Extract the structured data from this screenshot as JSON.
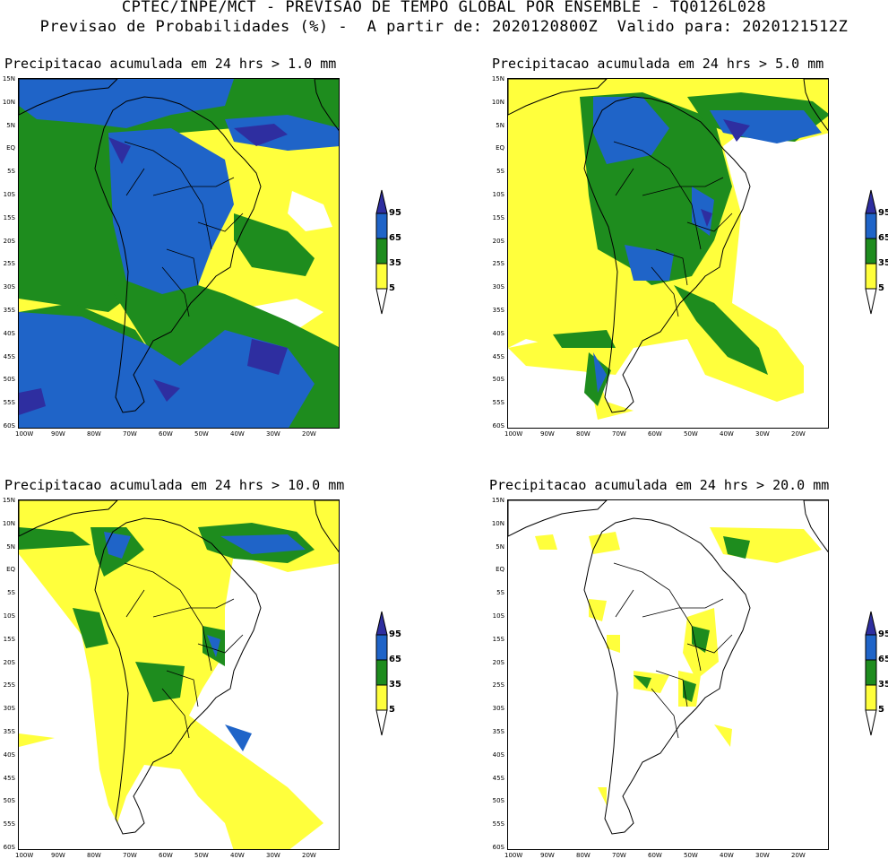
{
  "header": {
    "line1": "CPTEC/INPE/MCT - PREVISAO DE TEMPO GLOBAL POR ENSEMBLE - TQ0126L028",
    "line2": "Previsao de Probabilidades (%) -  A partir de: 2020120800Z  Valido para: 2020121512Z"
  },
  "panels": [
    {
      "title": "Precipitacao acumulada em 24 hrs > 1.0 mm"
    },
    {
      "title": "Precipitacao acumulada em 24 hrs > 5.0 mm"
    },
    {
      "title": "Precipitacao acumulada em 24 hrs > 10.0 mm"
    },
    {
      "title": "Precipitacao acumulada em 24 hrs > 20.0 mm"
    }
  ],
  "lat_labels": [
    "15N",
    "10N",
    "5N",
    "EQ",
    "5S",
    "10S",
    "15S",
    "20S",
    "25S",
    "30S",
    "35S",
    "40S",
    "45S",
    "50S",
    "55S",
    "60S"
  ],
  "lon_labels": [
    "100W",
    "90W",
    "80W",
    "70W",
    "60W",
    "50W",
    "40W",
    "30W",
    "20W"
  ],
  "colorbar": {
    "levels": [
      "95",
      "65",
      "35",
      "5"
    ],
    "colors": {
      "c95": "#2e2ea0",
      "c65": "#1f64c8",
      "c35": "#1e8c1e",
      "c5": "#ffff3c",
      "c0": "#ffffff"
    }
  }
}
